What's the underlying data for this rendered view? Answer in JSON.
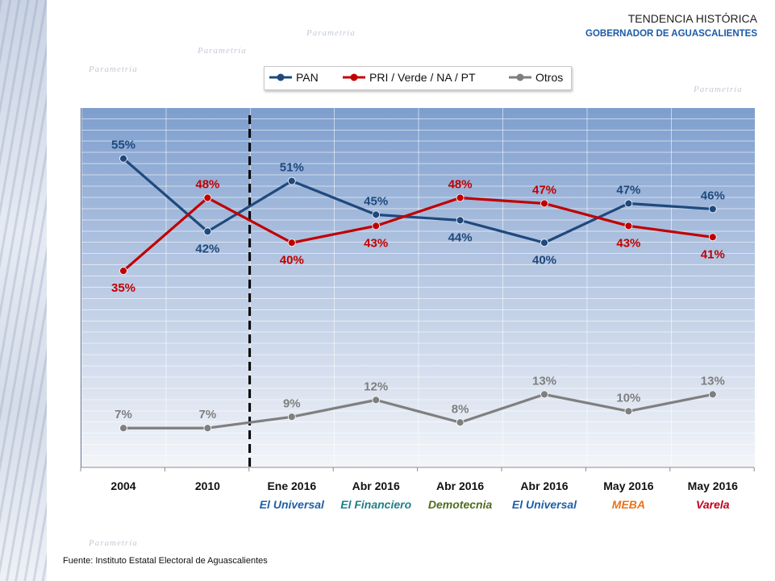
{
  "header": {
    "title": "TENDENCIA HISTÓRICA",
    "subtitle": "GOBERNADOR DE AGUASCALIENTES"
  },
  "watermark": "Parametría",
  "source": "Fuente: Instituto Estatal Electoral de Aguascalientes",
  "chart_data": {
    "type": "line",
    "title": "",
    "xlabel": "",
    "ylabel": "",
    "ylim": [
      0,
      64
    ],
    "grid": true,
    "legend_position": "top-center",
    "categories": [
      "2004",
      "2010",
      "Ene 2016",
      "Abr 2016",
      "Abr 2016",
      "Abr 2016",
      "May 2016",
      "May 2016"
    ],
    "pollsters": [
      {
        "name": "",
        "color": ""
      },
      {
        "name": "",
        "color": ""
      },
      {
        "name": "El Universal",
        "color": "#1f5fa6"
      },
      {
        "name": "El Financiero",
        "color": "#1f7f86"
      },
      {
        "name": "Demotecnia",
        "color": "#4f6b1e"
      },
      {
        "name": "El Universal",
        "color": "#1f5fa6"
      },
      {
        "name": "MEBA",
        "color": "#e8731c"
      },
      {
        "name": "Varela",
        "color": "#c0001a"
      }
    ],
    "divider_after_index": 1,
    "series": [
      {
        "name": "PAN",
        "color": "#1f497d",
        "values": [
          55,
          42,
          51,
          45,
          44,
          40,
          47,
          46
        ],
        "labels": [
          "55%",
          "42%",
          "51%",
          "45%",
          "44%",
          "40%",
          "47%",
          "46%"
        ]
      },
      {
        "name": "PRI / Verde / NA / PT",
        "color": "#c00000",
        "values": [
          35,
          48,
          40,
          43,
          48,
          47,
          43,
          41
        ],
        "labels": [
          "35%",
          "48%",
          "40%",
          "43%",
          "48%",
          "47%",
          "43%",
          "41%"
        ]
      },
      {
        "name": "Otros",
        "color": "#7f7f7f",
        "values": [
          7,
          7,
          9,
          12,
          8,
          13,
          10,
          13
        ],
        "labels": [
          "7%",
          "7%",
          "9%",
          "12%",
          "8%",
          "13%",
          "10%",
          "13%"
        ]
      }
    ]
  }
}
